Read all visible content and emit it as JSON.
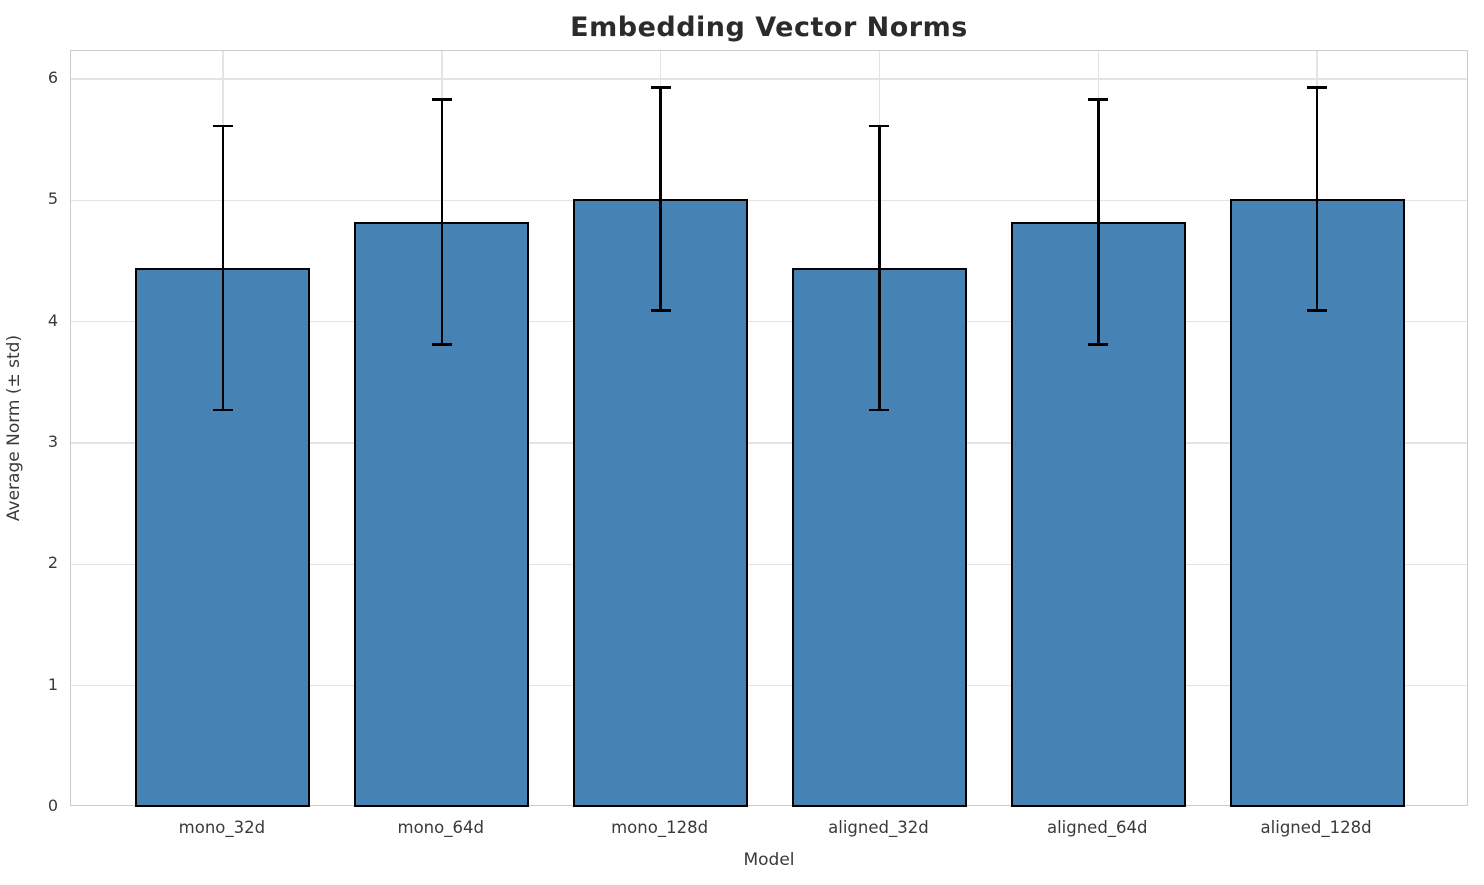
{
  "chart_data": {
    "type": "bar",
    "title": "Embedding Vector Norms",
    "xlabel": "Model",
    "ylabel": "Average Norm (± std)",
    "categories": [
      "mono_32d",
      "mono_64d",
      "mono_128d",
      "aligned_32d",
      "aligned_64d",
      "aligned_128d"
    ],
    "values": [
      4.44,
      4.82,
      5.01,
      4.44,
      4.82,
      5.01
    ],
    "errors": [
      1.17,
      1.01,
      0.92,
      1.17,
      1.01,
      0.92
    ],
    "ylim": [
      0,
      6.23
    ],
    "yticks": [
      0,
      1,
      2,
      3,
      4,
      5,
      6
    ],
    "grid": "both",
    "legend": "none",
    "bar_color": "#4682b4",
    "bar_edge_color": "#000000",
    "error_color": "#000000",
    "grid_color": "#e4e4e4",
    "spine_color": "#cccccc",
    "text_color": "#3a3a3a",
    "title_color": "#2b2b2b"
  }
}
